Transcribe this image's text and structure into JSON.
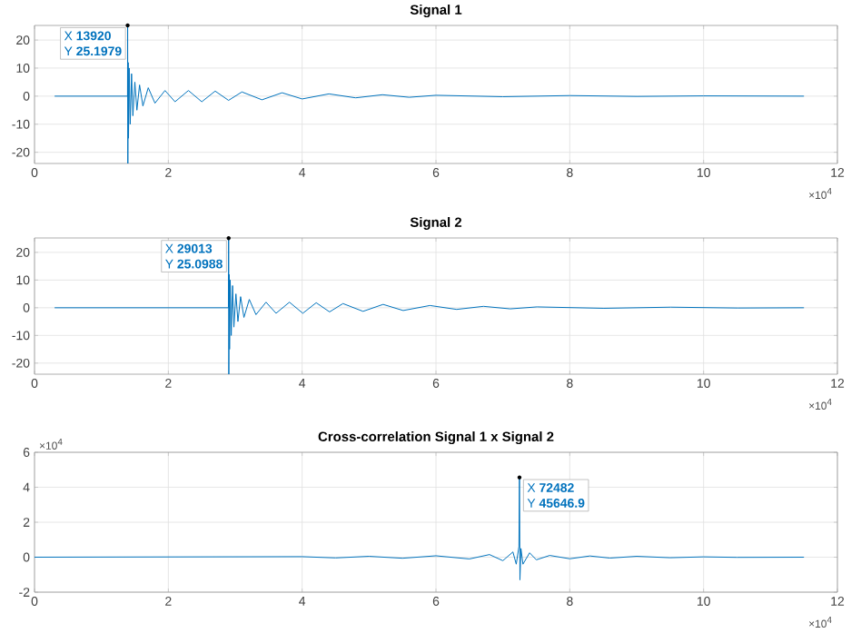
{
  "chart_data": [
    {
      "type": "line",
      "title": "Signal 1",
      "color": "#0072bd",
      "grid": true,
      "x": [
        0.3,
        1.39,
        1.392,
        1.395,
        1.4,
        1.405,
        1.415,
        1.43,
        1.45,
        1.47,
        1.5,
        1.53,
        1.57,
        1.62,
        1.7,
        1.8,
        1.95,
        2.1,
        2.3,
        2.5,
        2.7,
        2.9,
        3.1,
        3.4,
        3.7,
        4.0,
        4.4,
        4.8,
        5.2,
        5.6,
        6.0,
        7.0,
        8.0,
        9.0,
        10.0,
        11.5
      ],
      "values": [
        0,
        0,
        25.1979,
        -24,
        12,
        -15,
        10,
        -10,
        8,
        -7,
        5,
        -5,
        4,
        -3.5,
        3,
        -2.5,
        2,
        -2,
        2,
        -2,
        1.8,
        -1.5,
        1.5,
        -1.3,
        1.2,
        -1,
        0.8,
        -0.6,
        0.5,
        -0.4,
        0.3,
        -0.2,
        0.2,
        -0.1,
        0.1,
        0
      ],
      "xlim": [
        0,
        12
      ],
      "ylim": [
        -24,
        25.2
      ],
      "xticks": [
        0,
        2,
        4,
        6,
        8,
        10,
        12
      ],
      "yticks": [
        -20,
        -10,
        0,
        10,
        20
      ],
      "annotations": [
        {
          "text": "X **13920**",
          "x": 1.392,
          "y": 25.1979
        },
        {
          "text": "Y **25.1979**",
          "x": 1.392,
          "y": 25.1979
        },
        "×10$^{4}$"
      ]
    },
    {
      "type": "line",
      "title": "Signal 2",
      "color": "#0072bd",
      "grid": true,
      "x": [
        0.3,
        2.899,
        2.9013,
        2.904,
        2.91,
        2.915,
        2.925,
        2.94,
        2.96,
        2.98,
        3.01,
        3.04,
        3.08,
        3.13,
        3.21,
        3.31,
        3.46,
        3.61,
        3.81,
        4.01,
        4.21,
        4.41,
        4.61,
        4.91,
        5.21,
        5.51,
        5.91,
        6.31,
        6.71,
        7.11,
        7.51,
        8.51,
        9.51,
        10.51,
        11.5
      ],
      "values": [
        0,
        0,
        25.0988,
        -24,
        12,
        -15,
        10,
        -10,
        8,
        -7,
        5,
        -5,
        4,
        -3.5,
        3,
        -2.5,
        2,
        -2,
        2,
        -2,
        1.8,
        -1.5,
        1.5,
        -1.3,
        1.2,
        -1,
        0.8,
        -0.6,
        0.5,
        -0.4,
        0.3,
        -0.2,
        0.2,
        -0.1,
        0
      ],
      "xlim": [
        0,
        12
      ],
      "ylim": [
        -24,
        25.2
      ],
      "xticks": [
        0,
        2,
        4,
        6,
        8,
        10,
        12
      ],
      "yticks": [
        -20,
        -10,
        0,
        10,
        20
      ],
      "annotations": [
        {
          "text": "X **29013**",
          "x": 2.9013,
          "y": 25.0988
        },
        {
          "text": "Y **25.0988**",
          "x": 2.9013,
          "y": 25.0988
        },
        "×10$^{4}$"
      ]
    },
    {
      "type": "line",
      "title": "Cross-correlation Signal 1 x Signal 2",
      "color": "#0072bd",
      "grid": true,
      "x": [
        0,
        4.0,
        4.5,
        5.0,
        5.5,
        6.0,
        6.5,
        6.8,
        7.0,
        7.15,
        7.2,
        7.24,
        7.2482,
        7.255,
        7.27,
        7.3,
        7.4,
        7.5,
        7.7,
        8.0,
        8.3,
        8.6,
        9.0,
        9.5,
        10.0,
        10.5,
        11.5
      ],
      "values": [
        0,
        0.03,
        -0.04,
        0.05,
        -0.06,
        0.08,
        -0.1,
        0.15,
        -0.2,
        0.3,
        -0.4,
        0.6,
        4.56469,
        -1.3,
        0.5,
        -0.4,
        0.25,
        -0.15,
        0.1,
        -0.09,
        0.07,
        -0.05,
        0.05,
        -0.03,
        0.02,
        -0.01,
        0
      ],
      "xlim": [
        0,
        12
      ],
      "ylim": [
        -2,
        6
      ],
      "xticks": [
        0,
        2,
        4,
        6,
        8,
        10,
        12
      ],
      "yticks": [
        -2,
        0,
        2,
        4,
        6
      ],
      "annotations": [
        {
          "text": "X **72482**",
          "x": 7.2482,
          "y": 4.56469
        },
        {
          "text": "Y **45646.9**",
          "x": 7.2482,
          "y": 4.56469
        },
        "×10$^{4}$",
        "×10$^{4}$"
      ]
    }
  ]
}
